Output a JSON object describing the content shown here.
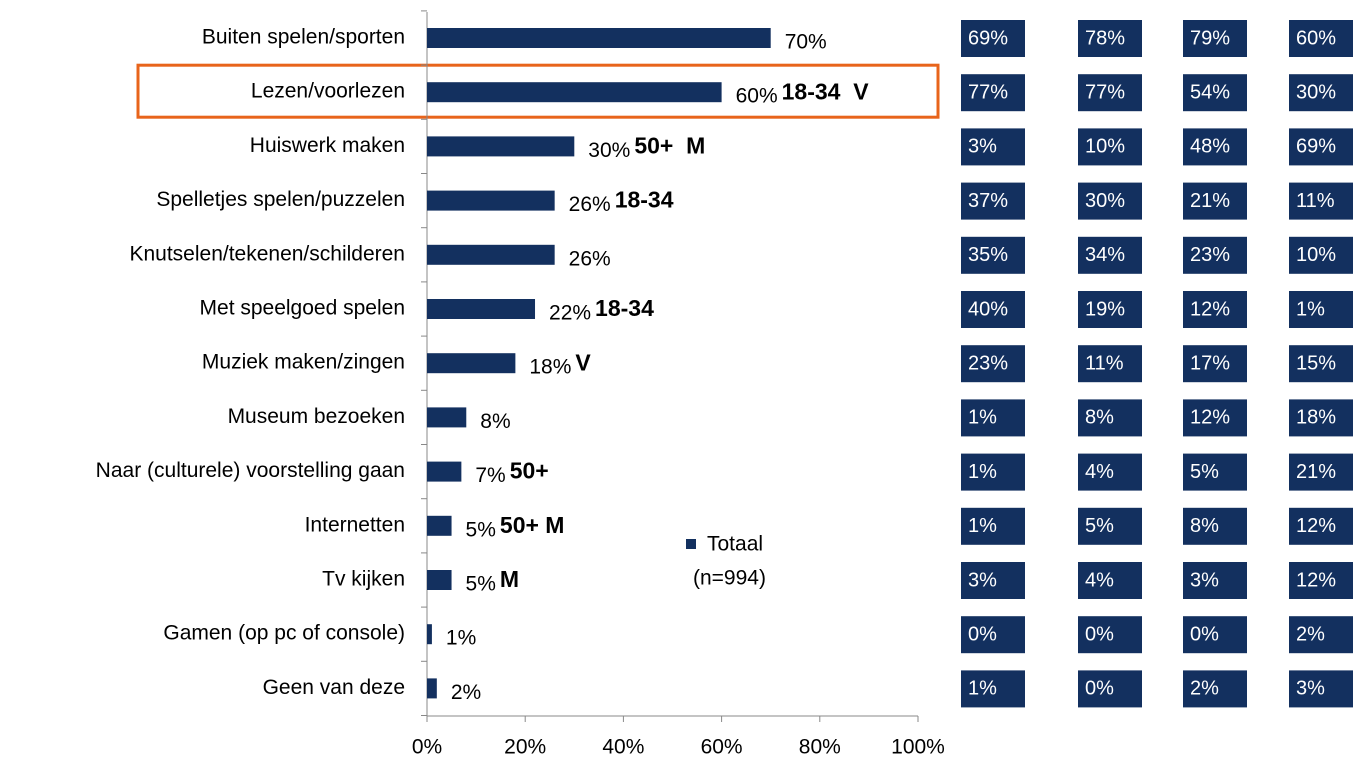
{
  "chart_data": {
    "type": "bar",
    "orientation": "horizontal",
    "categories": [
      "Buiten spelen/sporten",
      "Lezen/voorlezen",
      "Huiswerk maken",
      "Spelletjes spelen/puzzelen",
      "Knutselen/tekenen/schilderen",
      "Met speelgoed spelen",
      "Muziek maken/zingen",
      "Museum bezoeken",
      "Naar (culturele) voorstelling gaan",
      "Internetten",
      "Tv kijken",
      "Gamen (op pc of console)",
      "Geen van deze"
    ],
    "series": [
      {
        "name": "Totaal",
        "color": "#13305f",
        "values": [
          70,
          60,
          30,
          26,
          26,
          22,
          18,
          8,
          7,
          5,
          5,
          1,
          2
        ],
        "value_labels": [
          "70%",
          "60%",
          "30%",
          "26%",
          "26%",
          "22%",
          "18%",
          "8%",
          "7%",
          "5%",
          "5%",
          "1%",
          "2%"
        ]
      }
    ],
    "legend_note": "(n=994)",
    "annotations": [
      null,
      "18-34  V",
      "50+  M",
      "18-34",
      null,
      "18-34",
      "V",
      null,
      "50+",
      "50+ M",
      "M",
      null,
      null
    ],
    "xlim": [
      0,
      100
    ],
    "xticks": [
      {
        "value": 0,
        "label": "0%"
      },
      {
        "value": 20,
        "label": "20%"
      },
      {
        "value": 40,
        "label": "40%"
      },
      {
        "value": 60,
        "label": "60%"
      },
      {
        "value": 80,
        "label": "80%"
      },
      {
        "value": 100,
        "label": "100%"
      }
    ],
    "highlight_category": 1,
    "table": {
      "color": "#13305f",
      "rows": [
        [
          "69%",
          "78%",
          "79%",
          "60%"
        ],
        [
          "77%",
          "77%",
          "54%",
          "30%"
        ],
        [
          "3%",
          "10%",
          "48%",
          "69%"
        ],
        [
          "37%",
          "30%",
          "21%",
          "11%"
        ],
        [
          "35%",
          "34%",
          "23%",
          "10%"
        ],
        [
          "40%",
          "19%",
          "12%",
          "1%"
        ],
        [
          "23%",
          "11%",
          "17%",
          "15%"
        ],
        [
          "1%",
          "8%",
          "12%",
          "18%"
        ],
        [
          "1%",
          "4%",
          "5%",
          "21%"
        ],
        [
          "1%",
          "5%",
          "8%",
          "12%"
        ],
        [
          "3%",
          "4%",
          "3%",
          "12%"
        ],
        [
          "0%",
          "0%",
          "0%",
          "2%"
        ],
        [
          "1%",
          "0%",
          "2%",
          "3%"
        ]
      ]
    }
  }
}
